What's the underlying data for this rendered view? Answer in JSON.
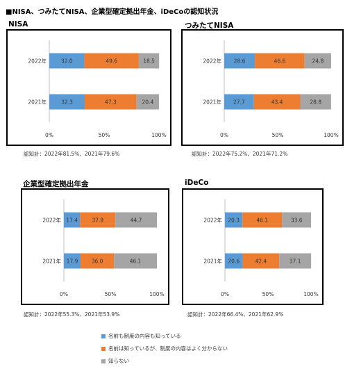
{
  "title": "■NISA、つみたてNISA、企業型確定拠出年金、iDeCoの認知状況",
  "colors": {
    "known_both": "#5b9bd5",
    "known_name": "#ed7d31",
    "unknown": "#a5a5a5"
  },
  "legend": [
    {
      "label": "名前も制度の内容も知っている",
      "color": "#5b9bd5"
    },
    {
      "label": "名前は知っているが、制度の内容はよく分からない",
      "color": "#ed7d31"
    },
    {
      "label": "知らない",
      "color": "#a5a5a5"
    }
  ],
  "chart_data": [
    {
      "type": "bar",
      "orientation": "horizontal",
      "stacked": true,
      "title": "NISA",
      "categories": [
        "2022年",
        "2021年"
      ],
      "series": [
        {
          "name": "名前も制度の内容も知っている",
          "values": [
            32.0,
            32.3
          ]
        },
        {
          "name": "名前は知っているが、制度の内容はよく分からない",
          "values": [
            49.6,
            47.3
          ]
        },
        {
          "name": "知らない",
          "values": [
            18.5,
            20.4
          ]
        }
      ],
      "xticks": [
        "0%",
        "50%",
        "100%"
      ],
      "xlim": [
        0,
        100
      ],
      "note": "認知計：2022年81.5%、2021年79.6%"
    },
    {
      "type": "bar",
      "orientation": "horizontal",
      "stacked": true,
      "title": "つみたてNISA",
      "categories": [
        "2022年",
        "2021年"
      ],
      "series": [
        {
          "name": "名前も制度の内容も知っている",
          "values": [
            28.6,
            27.7
          ]
        },
        {
          "name": "名前は知っているが、制度の内容はよく分からない",
          "values": [
            46.6,
            43.4
          ]
        },
        {
          "name": "知らない",
          "values": [
            24.8,
            28.8
          ]
        }
      ],
      "xticks": [
        "0%",
        "50%",
        "100%"
      ],
      "xlim": [
        0,
        100
      ],
      "note": "認知計：2022年75.2%、2021年71.2%"
    },
    {
      "type": "bar",
      "orientation": "horizontal",
      "stacked": true,
      "title": "企業型確定拠出年金",
      "categories": [
        "2022年",
        "2021年"
      ],
      "series": [
        {
          "name": "名前も制度の内容も知っている",
          "values": [
            17.4,
            17.9
          ]
        },
        {
          "name": "名前は知っているが、制度の内容はよく分からない",
          "values": [
            37.9,
            36.0
          ]
        },
        {
          "name": "知らない",
          "values": [
            44.7,
            46.1
          ]
        }
      ],
      "xticks": [
        "0%",
        "50%",
        "100%"
      ],
      "xlim": [
        0,
        100
      ],
      "note": "認知計：2022年55.3%、2021年53.9%"
    },
    {
      "type": "bar",
      "orientation": "horizontal",
      "stacked": true,
      "title": "iDeCo",
      "categories": [
        "2022年",
        "2021年"
      ],
      "series": [
        {
          "name": "名前も制度の内容も知っている",
          "values": [
            20.3,
            20.6
          ]
        },
        {
          "name": "名前は知っているが、制度の内容はよく分からない",
          "values": [
            46.1,
            42.4
          ]
        },
        {
          "name": "知らない",
          "values": [
            33.6,
            37.1
          ]
        }
      ],
      "xticks": [
        "0%",
        "50%",
        "100%"
      ],
      "xlim": [
        0,
        100
      ],
      "note": "認知計：2022年66.4%、2021年62.9%"
    }
  ]
}
